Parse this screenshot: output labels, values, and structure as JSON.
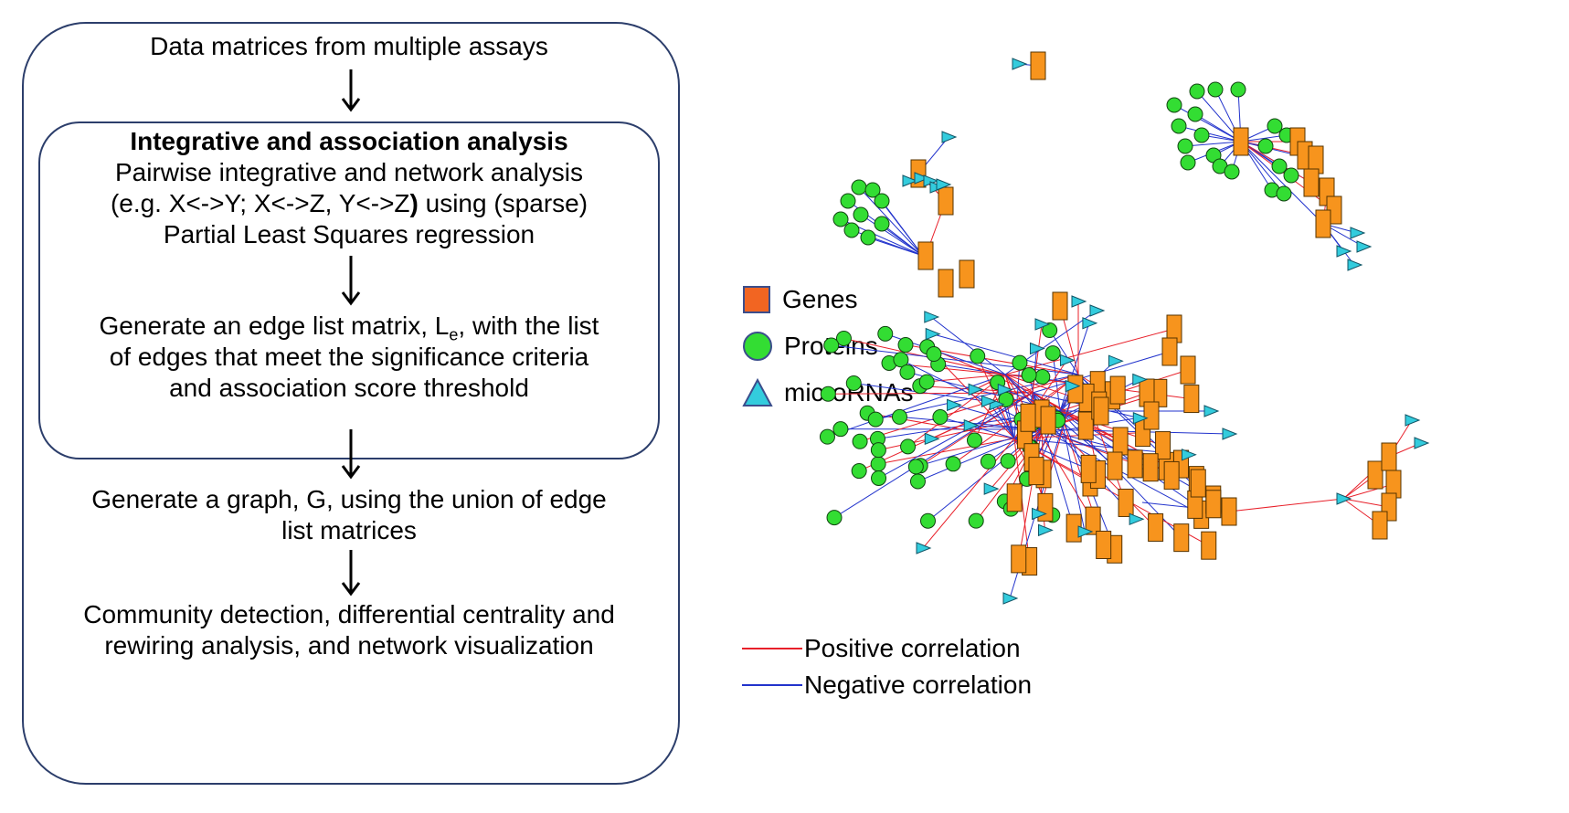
{
  "flow": {
    "step_top": "Data matrices from multiple assays",
    "inner": {
      "heading": "Integrative and association analysis",
      "line1": "Pairwise integrative and network analysis",
      "line2_a": "(e.g. X<->Y; X<->Z, Y<->Z",
      "line2_paren": ")",
      "line2_b": " using (sparse)",
      "line3": "Partial Least Squares regression",
      "edge_a": "Generate an edge list matrix, L",
      "edge_sub": "e",
      "edge_b": ", with the list",
      "edge_line2": "of edges that meet the significance criteria",
      "edge_line3": "and association score threshold"
    },
    "graph_line1": "Generate a graph, G, using the union of edge",
    "graph_line2": "list matrices",
    "community_line1": "Community detection, differential centrality and",
    "community_line2": "rewiring analysis, and network visualization"
  },
  "legend": {
    "genes": "Genes",
    "proteins": "Proteins",
    "micrornas": "microRNAs",
    "positive": "Positive correlation",
    "negative": "Negative correlation"
  },
  "colors": {
    "gene": "#f7941d",
    "protein": "#33dd33",
    "microrna": "#33ccdd",
    "positive": "#e8202a",
    "negative": "#2233cc",
    "frame": "#2c3e6b"
  }
}
